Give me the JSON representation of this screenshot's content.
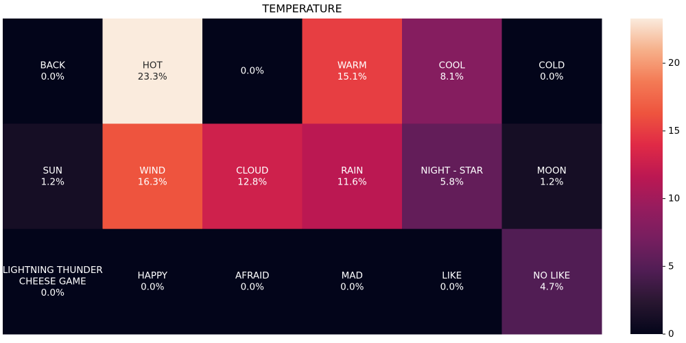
{
  "chart_data": {
    "type": "heatmap",
    "title": "TEMPERATURE",
    "rows": 3,
    "cols": 6,
    "cells": [
      [
        {
          "label": "BACK",
          "value": 0.0,
          "text": "0.0%"
        },
        {
          "label": "HOT",
          "value": 23.3,
          "text": "23.3%"
        },
        {
          "label": "",
          "value": 0.0,
          "text": "0.0%"
        },
        {
          "label": "WARM",
          "value": 15.1,
          "text": "15.1%"
        },
        {
          "label": "COOL",
          "value": 8.1,
          "text": "8.1%"
        },
        {
          "label": "COLD",
          "value": 0.0,
          "text": "0.0%"
        }
      ],
      [
        {
          "label": "SUN",
          "value": 1.2,
          "text": "1.2%"
        },
        {
          "label": "WIND",
          "value": 16.3,
          "text": "16.3%"
        },
        {
          "label": "CLOUD",
          "value": 12.8,
          "text": "12.8%"
        },
        {
          "label": "RAIN",
          "value": 11.6,
          "text": "11.6%"
        },
        {
          "label": "NIGHT - STAR",
          "value": 5.8,
          "text": "5.8%"
        },
        {
          "label": "MOON",
          "value": 1.2,
          "text": "1.2%"
        }
      ],
      [
        {
          "label": "LIGHTNING THUNDER\nCHEESE GAME",
          "value": 0.0,
          "text": "0.0%"
        },
        {
          "label": "HAPPY",
          "value": 0.0,
          "text": "0.0%"
        },
        {
          "label": "AFRAID",
          "value": 0.0,
          "text": "0.0%"
        },
        {
          "label": "MAD",
          "value": 0.0,
          "text": "0.0%"
        },
        {
          "label": "LIKE",
          "value": 0.0,
          "text": "0.0%"
        },
        {
          "label": "NO LIKE",
          "value": 4.7,
          "text": "4.7%"
        }
      ]
    ],
    "colorbar": {
      "vmin": 0,
      "vmax": 23.3,
      "ticks": [
        0,
        5,
        10,
        15,
        20
      ],
      "colormap": "rocket"
    },
    "xlabel": "",
    "ylabel": ""
  }
}
